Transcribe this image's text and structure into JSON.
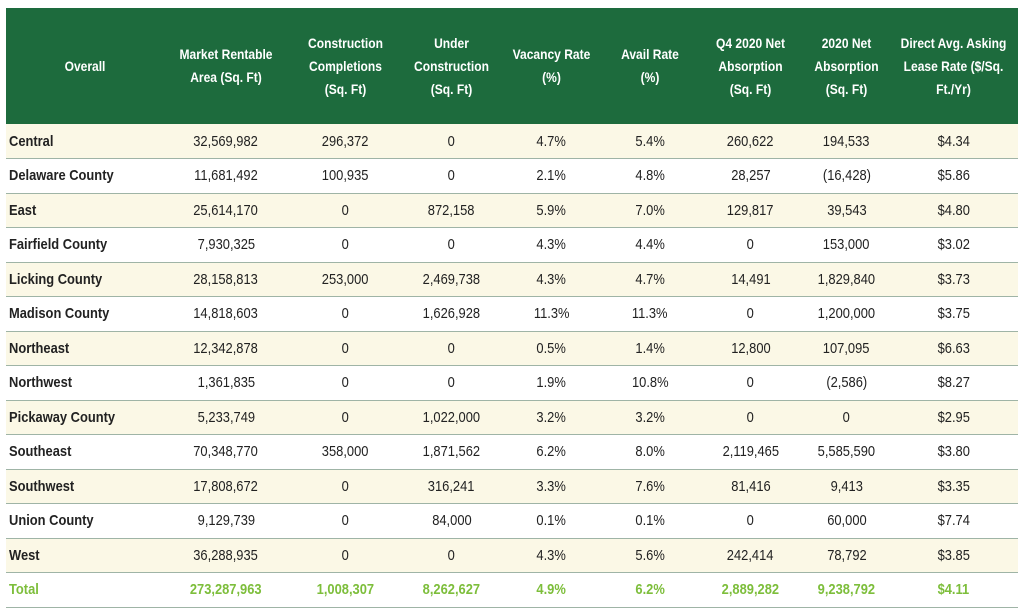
{
  "table": {
    "columns": [
      "Overall",
      "Market Rentable Area (Sq. Ft)",
      "Construction Completions (Sq. Ft)",
      "Under Construction (Sq. Ft)",
      "Vacancy Rate (%)",
      "Avail Rate (%)",
      "Q4 2020 Net Absorption (Sq. Ft)",
      "2020 Net Absorption (Sq. Ft)",
      "Direct Avg. Asking Lease Rate ($/Sq. Ft./Yr)"
    ],
    "rows": [
      [
        "Central",
        "32,569,982",
        "296,372",
        "0",
        "4.7%",
        "5.4%",
        "260,622",
        "194,533",
        "$4.34"
      ],
      [
        "Delaware County",
        "11,681,492",
        "100,935",
        "0",
        "2.1%",
        "4.8%",
        "28,257",
        "(16,428)",
        "$5.86"
      ],
      [
        "East",
        "25,614,170",
        "0",
        "872,158",
        "5.9%",
        "7.0%",
        "129,817",
        "39,543",
        "$4.80"
      ],
      [
        "Fairfield County",
        "7,930,325",
        "0",
        "0",
        "4.3%",
        "4.4%",
        "0",
        "153,000",
        "$3.02"
      ],
      [
        "Licking County",
        "28,158,813",
        "253,000",
        "2,469,738",
        "4.3%",
        "4.7%",
        "14,491",
        "1,829,840",
        "$3.73"
      ],
      [
        "Madison County",
        "14,818,603",
        "0",
        "1,626,928",
        "11.3%",
        "11.3%",
        "0",
        "1,200,000",
        "$3.75"
      ],
      [
        "Northeast",
        "12,342,878",
        "0",
        "0",
        "0.5%",
        "1.4%",
        "12,800",
        "107,095",
        "$6.63"
      ],
      [
        "Northwest",
        "1,361,835",
        "0",
        "0",
        "1.9%",
        "10.8%",
        "0",
        "(2,586)",
        "$8.27"
      ],
      [
        "Pickaway County",
        "5,233,749",
        "0",
        "1,022,000",
        "3.2%",
        "3.2%",
        "0",
        "0",
        "$2.95"
      ],
      [
        "Southeast",
        "70,348,770",
        "358,000",
        "1,871,562",
        "6.2%",
        "8.0%",
        "2,119,465",
        "5,585,590",
        "$3.80"
      ],
      [
        "Southwest",
        "17,808,672",
        "0",
        "316,241",
        "3.3%",
        "7.6%",
        "81,416",
        "9,413",
        "$3.35"
      ],
      [
        "Union County",
        "9,129,739",
        "0",
        "84,000",
        "0.1%",
        "0.1%",
        "0",
        "60,000",
        "$7.74"
      ],
      [
        "West",
        "36,288,935",
        "0",
        "0",
        "4.3%",
        "5.6%",
        "242,414",
        "78,792",
        "$3.85"
      ]
    ],
    "total": [
      "Total",
      "273,287,963",
      "1,008,307",
      "8,262,627",
      "4.9%",
      "6.2%",
      "2,889,282",
      "9,238,792",
      "$4.11"
    ]
  },
  "colors": {
    "header_bg": "#1d6b3d",
    "row_alt_bg": "#fbf8e6",
    "total_text": "#7dbe3b"
  }
}
